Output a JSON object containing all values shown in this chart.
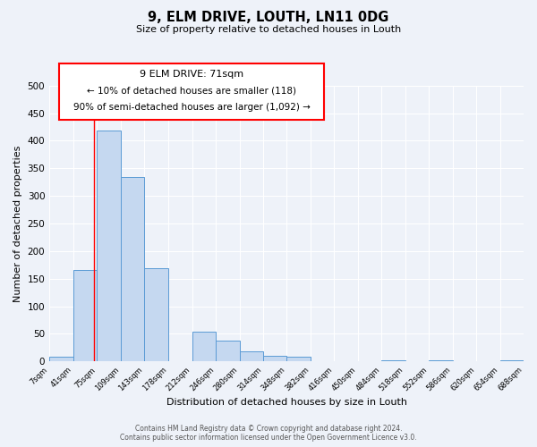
{
  "title": "9, ELM DRIVE, LOUTH, LN11 0DG",
  "subtitle": "Size of property relative to detached houses in Louth",
  "xlabel": "Distribution of detached houses by size in Louth",
  "ylabel": "Number of detached properties",
  "bar_values": [
    8,
    165,
    418,
    334,
    169,
    0,
    54,
    38,
    18,
    10,
    8,
    0,
    0,
    0,
    2,
    0,
    2,
    0,
    0,
    2
  ],
  "bin_edges": [
    7,
    41,
    75,
    109,
    143,
    178,
    212,
    246,
    280,
    314,
    348,
    382,
    416,
    450,
    484,
    518,
    552,
    586,
    620,
    654,
    688
  ],
  "tick_labels": [
    "7sqm",
    "41sqm",
    "75sqm",
    "109sqm",
    "143sqm",
    "178sqm",
    "212sqm",
    "246sqm",
    "280sqm",
    "314sqm",
    "348sqm",
    "382sqm",
    "416sqm",
    "450sqm",
    "484sqm",
    "518sqm",
    "552sqm",
    "586sqm",
    "620sqm",
    "654sqm",
    "688sqm"
  ],
  "bar_color": "#c5d8f0",
  "bar_edge_color": "#5b9bd5",
  "red_line_x": 71,
  "annotation_text_line1": "9 ELM DRIVE: 71sqm",
  "annotation_text_line2": "← 10% of detached houses are smaller (118)",
  "annotation_text_line3": "90% of semi-detached houses are larger (1,092) →",
  "ylim": [
    0,
    500
  ],
  "yticks": [
    0,
    50,
    100,
    150,
    200,
    250,
    300,
    350,
    400,
    450,
    500
  ],
  "footer_line1": "Contains HM Land Registry data © Crown copyright and database right 2024.",
  "footer_line2": "Contains public sector information licensed under the Open Government Licence v3.0.",
  "background_color": "#eef2f9",
  "grid_color": "#ffffff",
  "bar_linewidth": 0.7
}
